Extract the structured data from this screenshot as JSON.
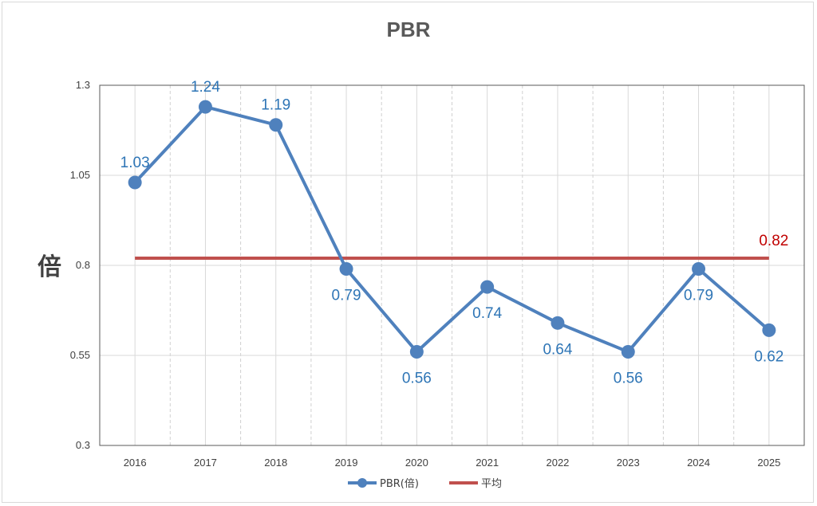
{
  "chart_data": {
    "type": "line",
    "title": "PBR",
    "xlabel": "",
    "ylabel": "倍",
    "categories": [
      "2016",
      "2017",
      "2018",
      "2019",
      "2020",
      "2021",
      "2022",
      "2023",
      "2024",
      "2025"
    ],
    "series": [
      {
        "name": "PBR(倍)",
        "values": [
          1.03,
          1.24,
          1.19,
          0.79,
          0.56,
          0.74,
          0.64,
          0.56,
          0.79,
          0.62
        ],
        "labels": [
          "1.03",
          "1.24",
          "1.19",
          "0.79",
          "0.56",
          "0.74",
          "0.64",
          "0.56",
          "0.79",
          "0.62"
        ],
        "color": "#4f81bd",
        "label_color": "#2e75b6"
      },
      {
        "name": "平均",
        "values": [
          0.82,
          0.82,
          0.82,
          0.82,
          0.82,
          0.82,
          0.82,
          0.82,
          0.82,
          0.82
        ],
        "end_label": "0.82",
        "color": "#c0504d",
        "label_color": "#c00000"
      }
    ],
    "ylim": [
      0.3,
      1.3
    ],
    "yticks": [
      "0.3",
      "0.55",
      "0.8",
      "1.05",
      "1.3"
    ],
    "grid": true,
    "legend": "bottom"
  }
}
